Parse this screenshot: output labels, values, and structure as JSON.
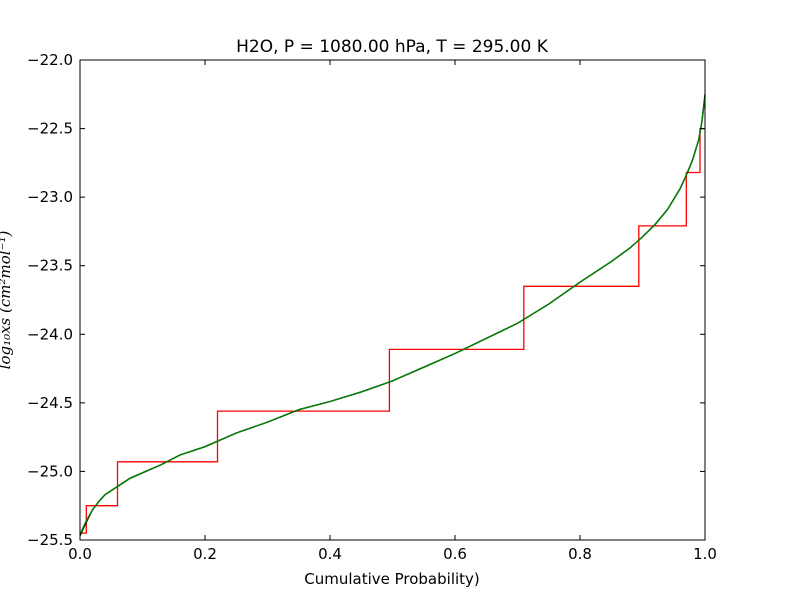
{
  "chart_data": {
    "type": "line",
    "title": "H2O, P = 1080.00 hPa, T = 295.00 K",
    "xlabel": "Cumulative Probability)",
    "ylabel": "log₁₀xs (cm²mol⁻¹)",
    "xlim": [
      0.0,
      1.0
    ],
    "ylim": [
      -25.5,
      -22.0
    ],
    "x_ticks": [
      "0.0",
      "0.2",
      "0.4",
      "0.6",
      "0.8",
      "1.0"
    ],
    "y_ticks": [
      "-22.0",
      "-22.5",
      "-23.0",
      "-23.5",
      "-24.0",
      "-24.5",
      "-25.0",
      "-25.5"
    ],
    "grid": false,
    "series": [
      {
        "color": "#000000",
        "x": [
          0.0,
          0.005,
          0.01,
          0.02,
          0.03,
          0.04,
          0.06,
          0.08,
          0.1,
          0.13,
          0.16,
          0.2,
          0.25,
          0.3,
          0.35,
          0.4,
          0.45,
          0.5,
          0.55,
          0.6,
          0.65,
          0.7,
          0.75,
          0.8,
          0.85,
          0.88,
          0.9,
          0.92,
          0.94,
          0.96,
          0.97,
          0.98,
          0.99,
          0.995,
          1.0
        ],
        "y": [
          -25.47,
          -25.42,
          -25.37,
          -25.28,
          -25.22,
          -25.17,
          -25.11,
          -25.05,
          -25.01,
          -24.95,
          -24.88,
          -24.82,
          -24.72,
          -24.64,
          -24.55,
          -24.49,
          -24.42,
          -24.34,
          -24.24,
          -24.14,
          -24.03,
          -23.92,
          -23.78,
          -23.62,
          -23.47,
          -23.37,
          -23.29,
          -23.2,
          -23.09,
          -22.94,
          -22.84,
          -22.73,
          -22.58,
          -22.45,
          -22.25
        ]
      },
      {
        "color": "#008000",
        "x": [
          0.0,
          0.005,
          0.01,
          0.02,
          0.03,
          0.04,
          0.06,
          0.08,
          0.1,
          0.13,
          0.16,
          0.2,
          0.25,
          0.3,
          0.35,
          0.4,
          0.45,
          0.5,
          0.55,
          0.6,
          0.65,
          0.7,
          0.75,
          0.8,
          0.85,
          0.88,
          0.9,
          0.92,
          0.94,
          0.96,
          0.97,
          0.98,
          0.99,
          0.995,
          1.0
        ],
        "y": [
          -25.46,
          -25.41,
          -25.36,
          -25.28,
          -25.22,
          -25.17,
          -25.11,
          -25.05,
          -25.01,
          -24.95,
          -24.88,
          -24.82,
          -24.72,
          -24.64,
          -24.55,
          -24.49,
          -24.42,
          -24.34,
          -24.24,
          -24.14,
          -24.03,
          -23.92,
          -23.78,
          -23.62,
          -23.47,
          -23.37,
          -23.29,
          -23.2,
          -23.09,
          -22.94,
          -22.84,
          -22.73,
          -22.58,
          -22.45,
          -22.27
        ]
      },
      {
        "color": "#ff0000",
        "step": true,
        "x": [
          0.0,
          0.01,
          0.01,
          0.06,
          0.06,
          0.22,
          0.22,
          0.495,
          0.495,
          0.71,
          0.71,
          0.894,
          0.894,
          0.97,
          0.97,
          0.992,
          0.992,
          1.0
        ],
        "y": [
          -25.45,
          -25.45,
          -25.25,
          -25.25,
          -24.93,
          -24.93,
          -24.56,
          -24.56,
          -24.11,
          -24.11,
          -23.65,
          -23.65,
          -23.21,
          -23.21,
          -22.82,
          -22.82,
          -22.5,
          -22.5
        ]
      }
    ]
  }
}
